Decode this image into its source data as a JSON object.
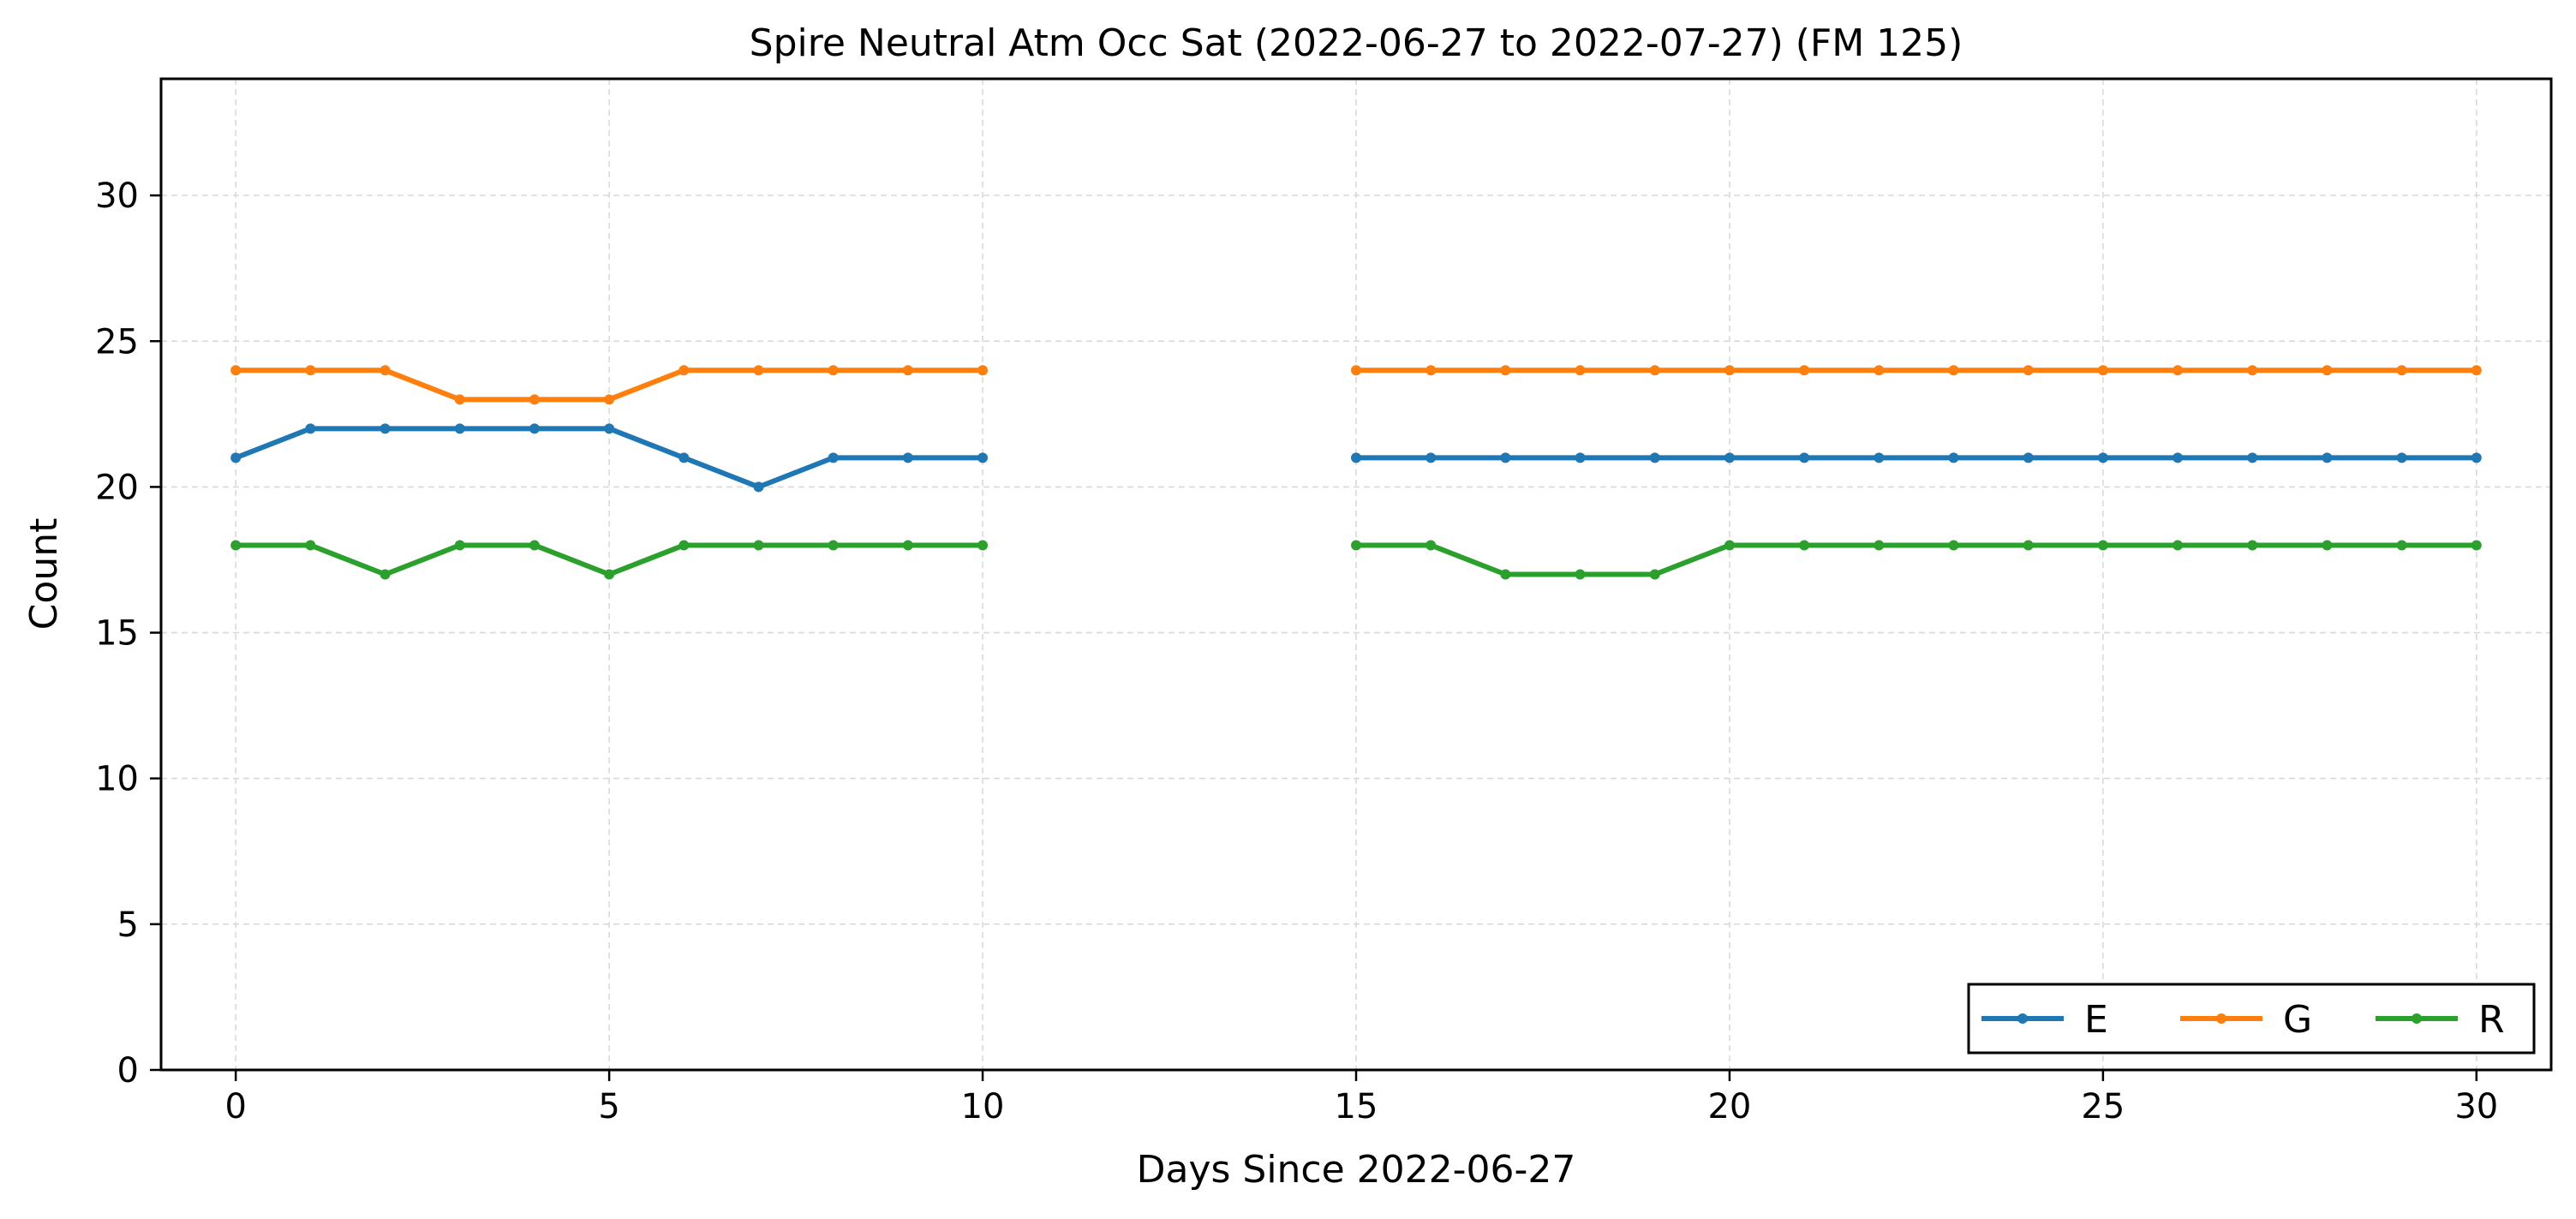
{
  "chart_data": {
    "type": "line",
    "title": "Spire Neutral Atm Occ Sat (2022-06-27 to 2022-07-27) (FM 125)",
    "xlabel": "Days Since 2022-06-27",
    "ylabel": "Count",
    "xlim": [
      -1,
      31
    ],
    "ylim": [
      0,
      34
    ],
    "xticks": [
      0,
      5,
      10,
      15,
      20,
      25,
      30
    ],
    "yticks": [
      0,
      5,
      10,
      15,
      20,
      25,
      30
    ],
    "grid": true,
    "legend_position": "lower-right",
    "x": [
      0,
      1,
      2,
      3,
      4,
      5,
      6,
      7,
      8,
      9,
      10,
      15,
      16,
      17,
      18,
      19,
      20,
      21,
      22,
      23,
      24,
      25,
      26,
      27,
      28,
      29,
      30
    ],
    "series": [
      {
        "name": "E",
        "color": "#1f77b4",
        "values": [
          21,
          22,
          22,
          22,
          22,
          22,
          21,
          20,
          21,
          21,
          21,
          21,
          21,
          21,
          21,
          21,
          21,
          21,
          21,
          21,
          21,
          21,
          21,
          21,
          21,
          21,
          21
        ]
      },
      {
        "name": "G",
        "color": "#ff7f0e",
        "values": [
          24,
          24,
          24,
          23,
          23,
          23,
          24,
          24,
          24,
          24,
          24,
          24,
          24,
          24,
          24,
          24,
          24,
          24,
          24,
          24,
          24,
          24,
          24,
          24,
          24,
          24,
          24
        ]
      },
      {
        "name": "R",
        "color": "#2ca02c",
        "values": [
          18,
          18,
          17,
          18,
          18,
          17,
          18,
          18,
          18,
          18,
          18,
          18,
          18,
          17,
          17,
          17,
          18,
          18,
          18,
          18,
          18,
          18,
          18,
          18,
          18,
          18,
          18
        ]
      }
    ]
  }
}
